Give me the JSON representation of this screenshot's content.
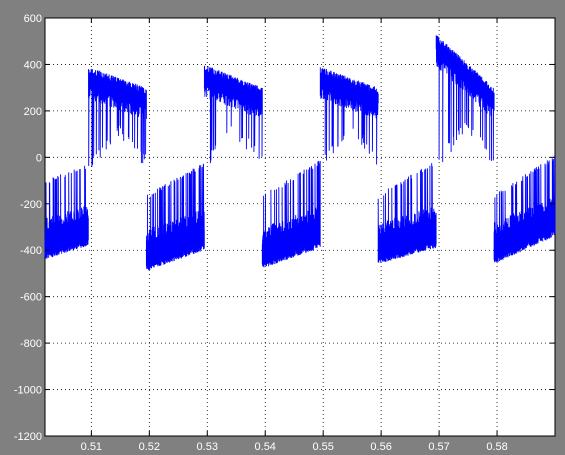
{
  "chart_data": {
    "type": "line",
    "title": "",
    "xlabel": "",
    "ylabel": "",
    "xlim": [
      0.502,
      0.59
    ],
    "ylim": [
      -1200,
      600
    ],
    "x_ticks": [
      0.51,
      0.52,
      0.53,
      0.54,
      0.55,
      0.56,
      0.57,
      0.58
    ],
    "x_tick_labels": [
      "0.51",
      "0.52",
      "0.53",
      "0.54",
      "0.55",
      "0.56",
      "0.57",
      "0.58"
    ],
    "y_ticks": [
      600,
      400,
      200,
      0,
      -200,
      -400,
      -600,
      -800,
      -1000,
      -1200
    ],
    "y_tick_labels": [
      "600",
      "400",
      "200",
      "0",
      "-200",
      "-400",
      "-600",
      "-800",
      "-1000",
      "-1200"
    ],
    "grid": true,
    "series": [
      {
        "color": "#0000ff",
        "period": 0.02,
        "segments": [
          {
            "polarity": "negative",
            "x_start": 0.502,
            "x_end": 0.5095,
            "upper_envelope": [
              -120,
              -45
            ],
            "lower_envelope": [
              -440,
              -380
            ]
          },
          {
            "polarity": "positive",
            "x_start": 0.5095,
            "x_end": 0.5195,
            "upper_envelope": [
              390,
              300
            ],
            "lower_envelope": [
              -20,
              150,
              10
            ]
          },
          {
            "polarity": "negative",
            "x_start": 0.5195,
            "x_end": 0.5295,
            "upper_envelope": [
              -180,
              -40
            ],
            "lower_envelope": [
              -490,
              -400
            ]
          },
          {
            "polarity": "positive",
            "x_start": 0.5295,
            "x_end": 0.5395,
            "upper_envelope": [
              400,
              300
            ],
            "lower_envelope": [
              -10,
              150,
              20
            ]
          },
          {
            "polarity": "negative",
            "x_start": 0.5395,
            "x_end": 0.5495,
            "upper_envelope": [
              -180,
              -30
            ],
            "lower_envelope": [
              -480,
              -390
            ]
          },
          {
            "polarity": "positive",
            "x_start": 0.5495,
            "x_end": 0.5595,
            "upper_envelope": [
              390,
              300
            ],
            "lower_envelope": [
              -10,
              170,
              20
            ]
          },
          {
            "polarity": "negative",
            "x_start": 0.5595,
            "x_end": 0.5695,
            "upper_envelope": [
              -180,
              -30
            ],
            "lower_envelope": [
              -460,
              -390
            ]
          },
          {
            "polarity": "positive",
            "x_start": 0.5695,
            "x_end": 0.5795,
            "upper_envelope": [
              530,
              300
            ],
            "lower_envelope": [
              -10,
              170,
              20
            ]
          },
          {
            "polarity": "negative",
            "x_start": 0.5795,
            "x_end": 0.59,
            "upper_envelope": [
              -180,
              -10
            ],
            "lower_envelope": [
              -460,
              -340
            ]
          }
        ]
      }
    ]
  }
}
